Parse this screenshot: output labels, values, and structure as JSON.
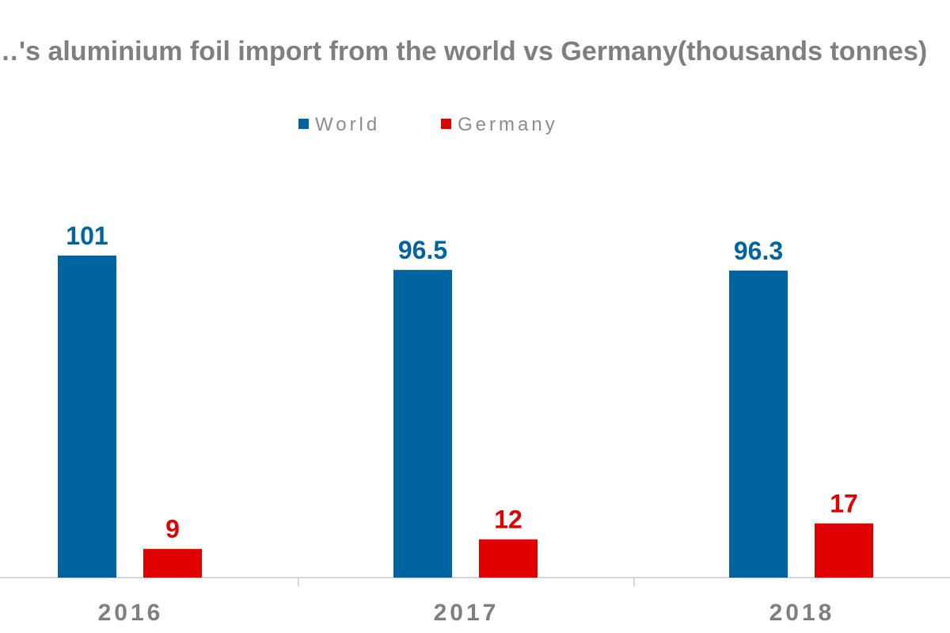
{
  "chart_data": {
    "type": "bar",
    "title": "…'s aluminium foil import from the world vs Germany(thousands tonnes)",
    "categories": [
      "2016",
      "2017",
      "2018"
    ],
    "series": [
      {
        "name": "World",
        "values": [
          101,
          96.5,
          96.3
        ],
        "color": "#0064a0"
      },
      {
        "name": "Germany",
        "values": [
          9,
          12,
          17
        ],
        "color": "#e00000"
      }
    ],
    "data_labels": [
      [
        "101",
        "96.5",
        "96.3"
      ],
      [
        "9",
        "12",
        "17"
      ]
    ],
    "ylim": [
      0,
      110
    ],
    "y_axis_visible": false,
    "grid": false,
    "legend_position": "top-center"
  }
}
